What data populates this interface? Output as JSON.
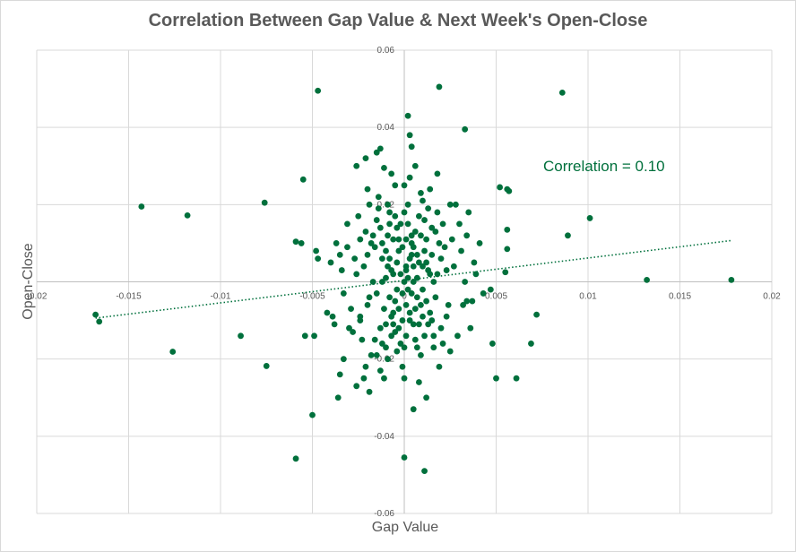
{
  "chart_data": {
    "type": "scatter",
    "title": "Correlation Between Gap Value & Next Week's Open-Close",
    "xlabel": "Gap Value",
    "ylabel": "Open-Close",
    "xlim": [
      -0.02,
      0.02
    ],
    "ylim": [
      -0.06,
      0.06
    ],
    "x_ticks": [
      "-0.02",
      "-0.015",
      "-0.01",
      "-0.005",
      "0",
      "0.005",
      "0.01",
      "0.015",
      "0.02"
    ],
    "y_ticks": [
      "-0.06",
      "-0.04",
      "-0.02",
      "0",
      "0.02",
      "0.04",
      "0.06"
    ],
    "grid": true,
    "marker_color": "#00703c",
    "trendline": {
      "style": "dotted",
      "x": [
        -0.0168,
        0.0178
      ],
      "y": [
        -0.0094,
        0.0107
      ]
    },
    "annotation": "Correlation = 0.10",
    "points": [
      [
        -0.0168,
        -0.0085
      ],
      [
        -0.0166,
        -0.0103
      ],
      [
        -0.0143,
        0.0195
      ],
      [
        -0.0118,
        0.0172
      ],
      [
        -0.0126,
        -0.0181
      ],
      [
        -0.0089,
        -0.014
      ],
      [
        -0.0076,
        0.0205
      ],
      [
        -0.0075,
        -0.0218
      ],
      [
        -0.0059,
        -0.0458
      ],
      [
        -0.0059,
        0.0104
      ],
      [
        -0.0056,
        0.01
      ],
      [
        -0.0055,
        0.0265
      ],
      [
        -0.0054,
        -0.014
      ],
      [
        -0.0049,
        -0.014
      ],
      [
        -0.005,
        -0.0345
      ],
      [
        -0.0047,
        0.0495
      ],
      [
        -0.0048,
        0.008
      ],
      [
        -0.0047,
        0.006
      ],
      [
        -0.0036,
        -0.03
      ],
      [
        -0.0035,
        -0.024
      ],
      [
        -0.0033,
        -0.02
      ],
      [
        -0.0031,
        0.009
      ],
      [
        -0.0028,
        -0.013
      ],
      [
        -0.0026,
        -0.027
      ],
      [
        -0.0026,
        0.03
      ],
      [
        -0.0024,
        -0.009
      ],
      [
        -0.0022,
        -0.025
      ],
      [
        -0.0021,
        0.032
      ],
      [
        -0.002,
        0.024
      ],
      [
        -0.0019,
        -0.0285
      ],
      [
        -0.0015,
        0.0335
      ],
      [
        -0.0013,
        0.0345
      ],
      [
        -0.0011,
        0.0295
      ],
      [
        -0.0009,
        0.02
      ],
      [
        0.0002,
        0.043
      ],
      [
        0.0003,
        0.038
      ],
      [
        0.0004,
        0.035
      ],
      [
        0.0005,
        -0.033
      ],
      [
        0.0,
        -0.0455
      ],
      [
        0.0011,
        -0.049
      ],
      [
        0.0019,
        0.0505
      ],
      [
        0.0018,
        0.028
      ],
      [
        0.0025,
        0.02
      ],
      [
        0.0033,
        0.0395
      ],
      [
        0.0035,
        0.018
      ],
      [
        0.0032,
        -0.006
      ],
      [
        0.0034,
        -0.005
      ],
      [
        0.0047,
        -0.002
      ],
      [
        0.0048,
        -0.016
      ],
      [
        0.005,
        -0.025
      ],
      [
        0.0052,
        0.0245
      ],
      [
        0.0056,
        0.024
      ],
      [
        0.0057,
        0.0235
      ],
      [
        0.0056,
        0.0135
      ],
      [
        0.0056,
        0.0085
      ],
      [
        0.0055,
        0.0025
      ],
      [
        0.0061,
        -0.025
      ],
      [
        0.0069,
        -0.016
      ],
      [
        0.0072,
        -0.0085
      ],
      [
        0.0086,
        0.049
      ],
      [
        0.0089,
        0.012
      ],
      [
        0.0101,
        0.0165
      ],
      [
        0.0132,
        0.0005
      ],
      [
        0.0178,
        0.0005
      ],
      [
        0.0005,
        0.0
      ],
      [
        0.0008,
        0.005
      ],
      [
        -0.0005,
        -0.005
      ],
      [
        -0.0003,
        0.008
      ],
      [
        0.0003,
        -0.01
      ],
      [
        -0.0007,
        0.003
      ],
      [
        0.001,
        -0.002
      ],
      [
        -0.001,
        -0.011
      ],
      [
        0.0012,
        0.011
      ],
      [
        -0.0002,
        0.015
      ],
      [
        0.0006,
        -0.015
      ],
      [
        -0.0012,
        0.006
      ],
      [
        0.0015,
        0.007
      ],
      [
        -0.0015,
        -0.003
      ],
      [
        0.0002,
        0.02
      ],
      [
        -0.0004,
        -0.018
      ],
      [
        0.0014,
        -0.008
      ],
      [
        -0.0018,
        0.01
      ],
      [
        0.0018,
        0.002
      ],
      [
        -0.0008,
        0.018
      ],
      [
        0.0009,
        0.023
      ],
      [
        -0.0001,
        -0.022
      ],
      [
        0.002,
        -0.012
      ],
      [
        -0.002,
        -0.006
      ],
      [
        0.0004,
        0.012
      ],
      [
        -0.0006,
        -0.008
      ],
      [
        0.0011,
        0.016
      ],
      [
        -0.0013,
        0.014
      ],
      [
        0.0016,
        -0.017
      ],
      [
        -0.0016,
        -0.015
      ],
      [
        0.0022,
        0.009
      ],
      [
        -0.0022,
        0.004
      ],
      [
        0.0001,
        0.004
      ],
      [
        -0.0003,
        -0.012
      ],
      [
        0.0007,
        -0.004
      ],
      [
        0.0013,
        0.003
      ],
      [
        -0.0009,
        -0.02
      ],
      [
        0.0017,
        0.013
      ],
      [
        -0.0017,
        0.0
      ],
      [
        0.0024,
        -0.006
      ],
      [
        -0.0024,
        -0.01
      ],
      [
        0.0003,
        0.027
      ],
      [
        -0.0005,
        0.025
      ],
      [
        0.0008,
        -0.026
      ],
      [
        -0.0011,
        -0.025
      ],
      [
        0.0019,
        -0.022
      ],
      [
        -0.0019,
        0.02
      ],
      [
        0.0027,
        0.004
      ],
      [
        -0.0027,
        0.006
      ],
      [
        0.0006,
        0.03
      ],
      [
        0.0012,
        -0.03
      ],
      [
        -0.0007,
        0.028
      ],
      [
        0.0001,
        -0.006
      ],
      [
        0.0002,
        0.001
      ],
      [
        -0.0002,
        0.002
      ],
      [
        0.0004,
        -0.003
      ],
      [
        -0.0004,
        0.005
      ],
      [
        0.0005,
        0.009
      ],
      [
        -0.0001,
        -0.01
      ],
      [
        0.0007,
        0.007
      ],
      [
        -0.0006,
        0.011
      ],
      [
        0.0009,
        -0.006
      ],
      [
        -0.0008,
        -0.004
      ],
      [
        0.001,
        0.004
      ],
      [
        -0.001,
        0.008
      ],
      [
        0.0011,
        -0.014
      ],
      [
        -0.0012,
        -0.016
      ],
      [
        0.0013,
        0.019
      ],
      [
        -0.0014,
        0.022
      ],
      [
        0.0015,
        -0.01
      ],
      [
        -0.0015,
        0.016
      ],
      [
        0.0016,
        0.0
      ],
      [
        0.0,
        0.0
      ],
      [
        0.0001,
        0.003
      ],
      [
        0.0002,
        -0.002
      ],
      [
        0.0003,
        0.006
      ],
      [
        -0.0003,
        -0.007
      ],
      [
        0.0004,
        0.01
      ],
      [
        -0.0004,
        0.014
      ],
      [
        0.0005,
        -0.011
      ],
      [
        -0.0005,
        -0.013
      ],
      [
        0.0006,
        0.013
      ],
      [
        -0.0006,
        0.002
      ],
      [
        0.0007,
        -0.017
      ],
      [
        -0.0007,
        -0.009
      ],
      [
        0.0008,
        0.017
      ],
      [
        -0.0008,
        0.006
      ],
      [
        0.0009,
        -0.019
      ],
      [
        -0.0009,
        0.012
      ],
      [
        0.001,
        0.021
      ],
      [
        -0.001,
        -0.017
      ],
      [
        0.0012,
        -0.005
      ],
      [
        -0.0012,
        0.0
      ],
      [
        0.0014,
        0.024
      ],
      [
        -0.0013,
        -0.023
      ],
      [
        0.0016,
        -0.014
      ],
      [
        -0.0016,
        0.009
      ],
      [
        0.0018,
        0.018
      ],
      [
        -0.0018,
        -0.019
      ],
      [
        0.002,
        0.006
      ],
      [
        -0.0021,
        0.013
      ],
      [
        0.0023,
        -0.009
      ],
      [
        -0.0023,
        -0.015
      ],
      [
        0.0026,
        0.011
      ],
      [
        -0.0026,
        0.002
      ],
      [
        0.0029,
        -0.014
      ],
      [
        -0.0029,
        -0.007
      ],
      [
        0.0031,
        0.008
      ],
      [
        -0.0031,
        0.015
      ],
      [
        0.0033,
        0.0
      ],
      [
        -0.0033,
        -0.003
      ],
      [
        0.0036,
        -0.012
      ],
      [
        -0.0035,
        0.007
      ],
      [
        0.0038,
        0.005
      ],
      [
        -0.0038,
        -0.011
      ],
      [
        0.0041,
        0.01
      ],
      [
        -0.004,
        0.005
      ],
      [
        0.0043,
        -0.003
      ],
      [
        -0.0042,
        -0.008
      ],
      [
        0.0021,
        0.015
      ],
      [
        -0.0021,
        -0.022
      ],
      [
        0.0025,
        -0.018
      ],
      [
        -0.0025,
        0.017
      ],
      [
        0.0028,
        0.02
      ],
      [
        0.0,
        0.025
      ],
      [
        0.0,
        -0.025
      ],
      [
        0.0,
        0.018
      ],
      [
        0.0,
        -0.017
      ],
      [
        0.0001,
        0.011
      ],
      [
        0.0001,
        -0.014
      ],
      [
        -0.0001,
        0.009
      ],
      [
        -0.0001,
        -0.003
      ],
      [
        0.0002,
        0.015
      ],
      [
        -0.0002,
        -0.016
      ],
      [
        0.0003,
        -0.008
      ],
      [
        -0.0003,
        0.011
      ],
      [
        0.0004,
        0.007
      ],
      [
        -0.0004,
        -0.002
      ],
      [
        0.0005,
        0.004
      ],
      [
        -0.0005,
        0.017
      ],
      [
        0.0006,
        -0.007
      ],
      [
        -0.0006,
        -0.011
      ],
      [
        0.0007,
        0.001
      ],
      [
        -0.0007,
        -0.014
      ],
      [
        0.0008,
        -0.011
      ],
      [
        -0.0008,
        0.015
      ],
      [
        0.0009,
        0.012
      ],
      [
        -0.0009,
        0.004
      ],
      [
        0.001,
        -0.009
      ],
      [
        -0.001,
        0.001
      ],
      [
        0.0011,
        0.008
      ],
      [
        -0.0011,
        -0.007
      ],
      [
        0.0012,
        0.005
      ],
      [
        -0.0012,
        0.01
      ],
      [
        0.0013,
        -0.011
      ],
      [
        -0.0013,
        -0.012
      ],
      [
        0.0014,
        0.002
      ],
      [
        -0.0014,
        0.019
      ],
      [
        0.0015,
        0.014
      ],
      [
        -0.0015,
        -0.019
      ],
      [
        0.0017,
        -0.004
      ],
      [
        -0.0017,
        0.012
      ],
      [
        0.0019,
        0.01
      ],
      [
        -0.0019,
        -0.004
      ],
      [
        0.0021,
        -0.016
      ],
      [
        -0.002,
        0.007
      ],
      [
        0.0023,
        0.003
      ],
      [
        -0.0024,
        0.011
      ],
      [
        0.003,
        0.015
      ],
      [
        -0.003,
        -0.012
      ],
      [
        0.0034,
        0.012
      ],
      [
        -0.0034,
        0.003
      ],
      [
        0.0037,
        -0.005
      ],
      [
        -0.0037,
        0.01
      ],
      [
        0.0039,
        0.002
      ],
      [
        -0.0039,
        -0.009
      ]
    ]
  }
}
